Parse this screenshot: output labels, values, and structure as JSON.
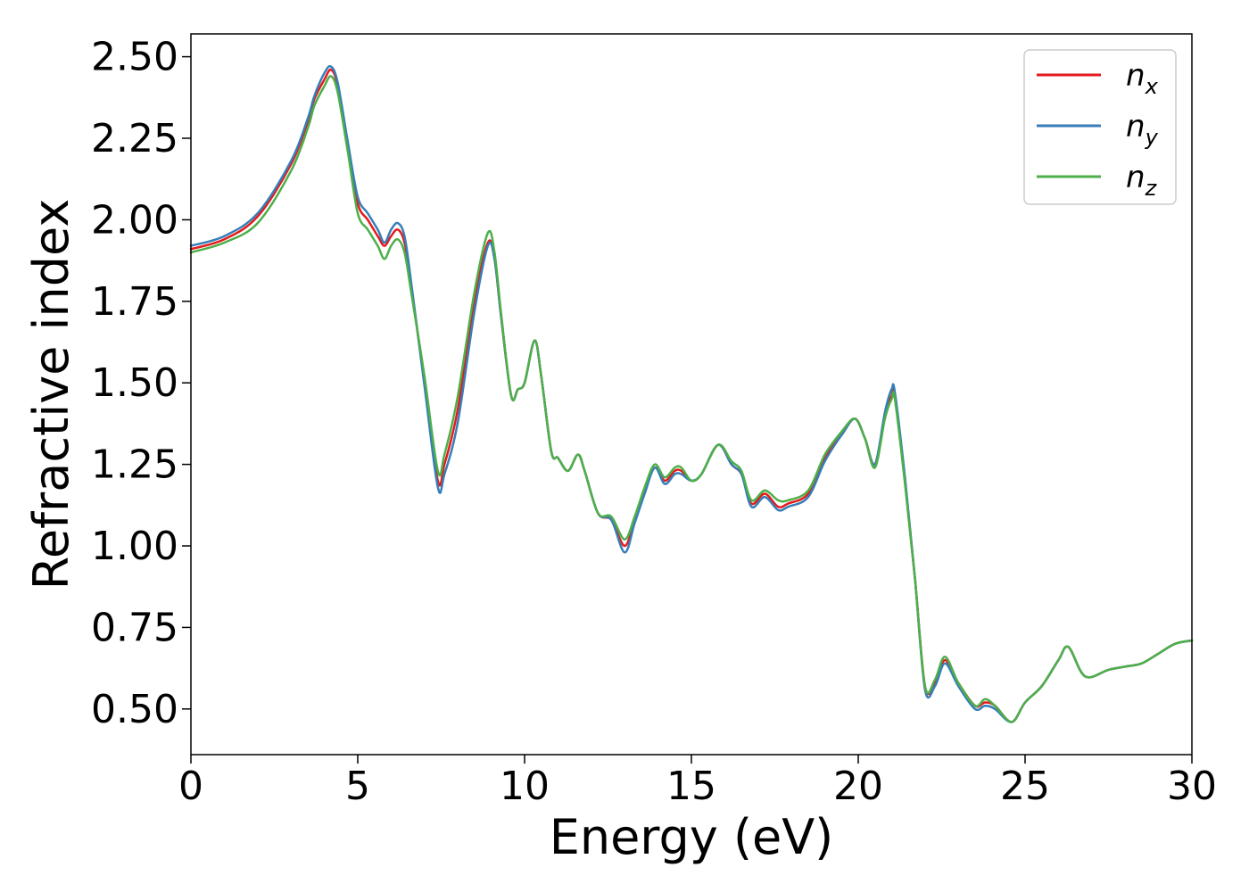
{
  "chart_data": {
    "type": "line",
    "title": "",
    "xlabel": "Energy (eV)",
    "ylabel": "Refractive index",
    "xlim": [
      0,
      30
    ],
    "ylim": [
      0.36,
      2.57
    ],
    "xticks": [
      0,
      5,
      10,
      15,
      20,
      25,
      30
    ],
    "xtick_labels": [
      "0",
      "5",
      "10",
      "15",
      "20",
      "25",
      "30"
    ],
    "yticks": [
      0.5,
      0.75,
      1.0,
      1.25,
      1.5,
      1.75,
      2.0,
      2.25,
      2.5
    ],
    "ytick_labels": [
      "0.50",
      "0.75",
      "1.00",
      "1.25",
      "1.50",
      "1.75",
      "2.00",
      "2.25",
      "2.50"
    ],
    "grid": false,
    "legend_position": "top-right",
    "series": [
      {
        "name": "n_x",
        "label_base": "n",
        "label_sub": "x",
        "color": "#e41a1c",
        "x": [
          0,
          1,
          2,
          3,
          3.5,
          3.7,
          4.0,
          4.2,
          4.4,
          4.7,
          5.0,
          5.3,
          5.6,
          5.8,
          6.0,
          6.2,
          6.4,
          6.6,
          7.0,
          7.4,
          7.6,
          8.0,
          8.5,
          8.9,
          9.1,
          9.3,
          9.6,
          9.8,
          10.0,
          10.3,
          10.5,
          10.8,
          11.0,
          11.3,
          11.6,
          11.8,
          12.2,
          12.6,
          13.0,
          13.3,
          13.6,
          13.9,
          14.2,
          14.5,
          14.7,
          15.0,
          15.3,
          15.8,
          16.2,
          16.5,
          16.8,
          17.2,
          17.6,
          17.9,
          18.5,
          19.0,
          19.5,
          19.9,
          20.2,
          20.5,
          20.8,
          21.0,
          21.1,
          21.4,
          21.7,
          22.0,
          22.3,
          22.6,
          23.0,
          23.5,
          23.8,
          24.1,
          24.6,
          25.0,
          25.5,
          26.0,
          26.3,
          26.8,
          27.5,
          28.0,
          28.5,
          29.0,
          29.5,
          30.0
        ],
        "y": [
          1.91,
          1.94,
          2.01,
          2.17,
          2.3,
          2.37,
          2.43,
          2.46,
          2.41,
          2.23,
          2.05,
          2.0,
          1.95,
          1.92,
          1.95,
          1.97,
          1.93,
          1.8,
          1.5,
          1.2,
          1.25,
          1.42,
          1.75,
          1.93,
          1.88,
          1.7,
          1.46,
          1.48,
          1.5,
          1.63,
          1.52,
          1.29,
          1.27,
          1.23,
          1.28,
          1.23,
          1.1,
          1.08,
          1.0,
          1.08,
          1.17,
          1.24,
          1.2,
          1.23,
          1.23,
          1.2,
          1.22,
          1.31,
          1.25,
          1.22,
          1.13,
          1.16,
          1.12,
          1.13,
          1.16,
          1.27,
          1.34,
          1.39,
          1.33,
          1.25,
          1.4,
          1.46,
          1.46,
          1.2,
          0.9,
          0.57,
          0.58,
          0.65,
          0.58,
          0.51,
          0.52,
          0.51,
          0.46,
          0.52,
          0.57,
          0.65,
          0.69,
          0.6,
          0.62,
          0.63,
          0.64,
          0.67,
          0.7,
          0.71
        ]
      },
      {
        "name": "n_y",
        "label_base": "n",
        "label_sub": "y",
        "color": "#377eb8",
        "x": [
          0,
          1,
          2,
          3,
          3.5,
          3.7,
          4.0,
          4.2,
          4.4,
          4.7,
          5.0,
          5.3,
          5.6,
          5.8,
          6.0,
          6.2,
          6.4,
          6.6,
          7.0,
          7.4,
          7.6,
          8.0,
          8.5,
          8.9,
          9.1,
          9.3,
          9.6,
          9.8,
          10.0,
          10.3,
          10.5,
          10.8,
          11.0,
          11.3,
          11.6,
          11.8,
          12.2,
          12.6,
          13.0,
          13.3,
          13.6,
          13.9,
          14.2,
          14.5,
          14.7,
          15.0,
          15.3,
          15.8,
          16.2,
          16.5,
          16.8,
          17.2,
          17.6,
          17.9,
          18.5,
          19.0,
          19.5,
          19.9,
          20.2,
          20.5,
          20.8,
          21.0,
          21.1,
          21.4,
          21.7,
          22.0,
          22.3,
          22.6,
          23.0,
          23.5,
          23.8,
          24.1,
          24.6,
          25.0,
          25.5,
          26.0,
          26.3,
          26.8,
          27.5,
          28.0,
          28.5,
          29.0,
          29.5,
          30.0
        ],
        "y": [
          1.92,
          1.95,
          2.02,
          2.18,
          2.31,
          2.38,
          2.45,
          2.47,
          2.42,
          2.24,
          2.07,
          2.02,
          1.97,
          1.93,
          1.97,
          1.99,
          1.95,
          1.81,
          1.49,
          1.18,
          1.22,
          1.38,
          1.72,
          1.92,
          1.88,
          1.7,
          1.46,
          1.48,
          1.5,
          1.63,
          1.52,
          1.29,
          1.27,
          1.23,
          1.28,
          1.23,
          1.1,
          1.08,
          0.98,
          1.07,
          1.16,
          1.24,
          1.19,
          1.22,
          1.22,
          1.2,
          1.22,
          1.31,
          1.25,
          1.22,
          1.12,
          1.15,
          1.11,
          1.12,
          1.15,
          1.26,
          1.34,
          1.39,
          1.33,
          1.25,
          1.41,
          1.48,
          1.47,
          1.21,
          0.9,
          0.56,
          0.57,
          0.64,
          0.57,
          0.5,
          0.51,
          0.5,
          0.46,
          0.52,
          0.57,
          0.65,
          0.69,
          0.6,
          0.62,
          0.63,
          0.64,
          0.67,
          0.7,
          0.71
        ]
      },
      {
        "name": "n_z",
        "label_base": "n",
        "label_sub": "z",
        "color": "#4daf4a",
        "x": [
          0,
          1,
          2,
          3,
          3.5,
          3.7,
          4.0,
          4.2,
          4.4,
          4.7,
          5.0,
          5.3,
          5.6,
          5.8,
          6.0,
          6.2,
          6.4,
          6.6,
          7.0,
          7.4,
          7.6,
          8.0,
          8.5,
          8.9,
          9.1,
          9.3,
          9.6,
          9.8,
          10.0,
          10.3,
          10.5,
          10.8,
          11.0,
          11.3,
          11.6,
          11.8,
          12.2,
          12.6,
          13.0,
          13.3,
          13.6,
          13.9,
          14.2,
          14.5,
          14.7,
          15.0,
          15.3,
          15.8,
          16.2,
          16.5,
          16.8,
          17.2,
          17.6,
          17.9,
          18.5,
          19.0,
          19.5,
          19.9,
          20.2,
          20.5,
          20.8,
          21.0,
          21.1,
          21.4,
          21.7,
          22.0,
          22.3,
          22.6,
          23.0,
          23.5,
          23.8,
          24.1,
          24.6,
          25.0,
          25.5,
          26.0,
          26.3,
          26.8,
          27.5,
          28.0,
          28.5,
          29.0,
          29.5,
          30.0
        ],
        "y": [
          1.9,
          1.93,
          1.99,
          2.15,
          2.28,
          2.35,
          2.41,
          2.44,
          2.39,
          2.21,
          2.02,
          1.97,
          1.92,
          1.88,
          1.92,
          1.94,
          1.9,
          1.78,
          1.52,
          1.23,
          1.28,
          1.46,
          1.78,
          1.96,
          1.9,
          1.71,
          1.46,
          1.48,
          1.5,
          1.63,
          1.52,
          1.29,
          1.27,
          1.23,
          1.28,
          1.23,
          1.1,
          1.09,
          1.02,
          1.09,
          1.18,
          1.25,
          1.21,
          1.24,
          1.24,
          1.2,
          1.22,
          1.31,
          1.26,
          1.23,
          1.14,
          1.17,
          1.14,
          1.14,
          1.17,
          1.28,
          1.35,
          1.39,
          1.33,
          1.24,
          1.39,
          1.45,
          1.45,
          1.19,
          0.9,
          0.57,
          0.59,
          0.66,
          0.58,
          0.51,
          0.53,
          0.51,
          0.46,
          0.52,
          0.57,
          0.65,
          0.69,
          0.6,
          0.62,
          0.63,
          0.64,
          0.67,
          0.7,
          0.71
        ]
      }
    ]
  }
}
